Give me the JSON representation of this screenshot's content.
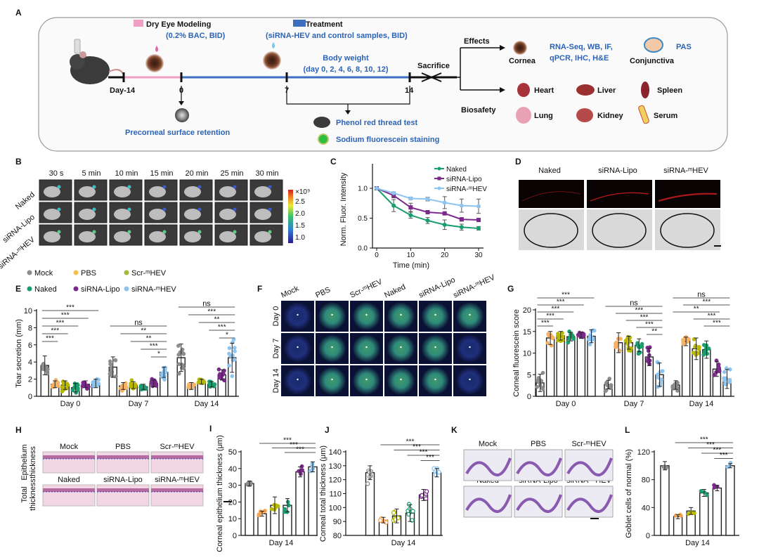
{
  "panel_a": {
    "label": "A",
    "dry_eye_title": "Dry Eye Modeling",
    "dry_eye_sub": "(0.2% BAC, BID)",
    "treatment_title": "Treatment",
    "treatment_sub": "(siRNA-HEV and control samples, BID)",
    "body_weight": "Body weight",
    "body_weight_days": "(day 0, 2, 4, 6, 8, 10, 12)",
    "timepoints": [
      "Day-14",
      "0",
      "7",
      "14"
    ],
    "sacrifice": "Sacrifice",
    "precorneal": "Precorneal surface retention",
    "phenol": "Phenol red thread test",
    "fluorescein": "Sodium fluorescein staining",
    "effects": "Effects",
    "biosafety": "Biosafety",
    "cornea": "Cornea",
    "assays_line1": "RNA-Seq, WB, IF,",
    "assays_line2": "qPCR, IHC, H&E",
    "pas": "PAS",
    "conjunctiva": "Conjunctiva",
    "organs": [
      "Heart",
      "Liver",
      "Spleen",
      "Lung",
      "Kidney",
      "Serum"
    ],
    "colors": {
      "modeling": "#f19ec4",
      "treatment": "#3d6fc0",
      "text_blue": "#2b63b8"
    }
  },
  "panel_b": {
    "label": "B",
    "times": [
      "30 s",
      "5 min",
      "10 min",
      "15 min",
      "20 min",
      "25 min",
      "30 min"
    ],
    "rows": [
      "Naked",
      "siRNA-Lipo",
      "siRNA-ᵐHEV"
    ],
    "colorbar_unit": "×10⁹",
    "colorbar_ticks": [
      "2.5",
      "2.0",
      "1.5",
      "1.0"
    ]
  },
  "panel_d": {
    "label": "D",
    "columns": [
      "Naked",
      "siRNA-Lipo",
      "siRNA-ᵐHEV"
    ]
  },
  "panel_f": {
    "label": "F",
    "columns": [
      "Mock",
      "PBS",
      "Scr-ᵐHEV",
      "Naked",
      "siRNA-Lipo",
      "siRNA-ᵐHEV"
    ],
    "rows": [
      "Day 0",
      "Day 7",
      "Day 14"
    ]
  },
  "panel_h": {
    "label": "H",
    "row1": [
      "Mock",
      "PBS",
      "Scr-ᵐHEV"
    ],
    "row2": [
      "Naked",
      "siRNA-Lipo",
      "siRNA-ᵐHEV"
    ],
    "row_labels": [
      [
        "Epithelium",
        "thickness"
      ],
      [
        "Total",
        "thickness"
      ]
    ]
  },
  "panel_k": {
    "label": "K",
    "row1": [
      "Mock",
      "PBS",
      "Scr-ᵐHEV"
    ],
    "row2": [
      "Naked",
      "siRNA-Lipo",
      "siRNA-ᵐHEV"
    ]
  },
  "legend_e": {
    "items": [
      "Mock",
      "PBS",
      "Scr-ᵐHEV",
      "Naked",
      "siRNA-Lipo",
      "siRNA-ᵐHEV"
    ],
    "colors": [
      "#8c8c8c",
      "#f2c14e",
      "#a8b83a",
      "#1a9e6e",
      "#7b2a8c",
      "#8ec5f0"
    ]
  },
  "chart_data": [
    {
      "id": "C",
      "label": "C",
      "type": "line",
      "xlabel": "Time (min)",
      "ylabel": "Norm. Fluor. Intensity",
      "x": [
        0,
        5,
        10,
        15,
        20,
        25,
        30
      ],
      "xticks": [
        0,
        10,
        20,
        30
      ],
      "yticks": [
        "0.0",
        "0.5",
        "1.0"
      ],
      "xlim": [
        0,
        30
      ],
      "ylim": [
        0,
        1.0
      ],
      "series": [
        {
          "name": "Naked",
          "color": "#1a9e6e",
          "values": [
            1.0,
            0.71,
            0.55,
            0.46,
            0.39,
            0.35,
            0.33
          ],
          "err": [
            0,
            0.1,
            0.05,
            0.05,
            0.08,
            0.05,
            0.03
          ]
        },
        {
          "name": "siRNA-Lipo",
          "color": "#7b2a8c",
          "values": [
            1.0,
            0.88,
            0.68,
            0.6,
            0.58,
            0.48,
            0.47
          ],
          "err": [
            0,
            0.04,
            0.07,
            0.03,
            0.02,
            0.03,
            0.02
          ]
        },
        {
          "name": "siRNA-ᵐHEV",
          "color": "#8ec5f0",
          "values": [
            1.0,
            0.92,
            0.83,
            0.82,
            0.76,
            0.71,
            0.7
          ],
          "err": [
            0,
            0.02,
            0.02,
            0.03,
            0.1,
            0.11,
            0.12
          ]
        }
      ],
      "legend": "top-right"
    },
    {
      "id": "E",
      "label": "E",
      "type": "bar",
      "ylabel": "Tear secretion (mm)",
      "ylim": [
        0,
        10
      ],
      "yticks": [
        0,
        2,
        4,
        6,
        8,
        10
      ],
      "categories": [
        "Day 0",
        "Day 7",
        "Day 14"
      ],
      "series_names": [
        "Mock",
        "PBS",
        "Scr-ᵐHEV",
        "Naked",
        "siRNA-Lipo",
        "siRNA-ᵐHEV"
      ],
      "colors": [
        "#8c8c8c",
        "#f7b267",
        "#b8b800",
        "#1a9e6e",
        "#7b2a8c",
        "#8ec5f0"
      ],
      "values": [
        [
          3.6,
          1.4,
          1.3,
          1.0,
          1.4,
          1.5
        ],
        [
          3.4,
          1.2,
          1.3,
          1.1,
          1.5,
          2.8
        ],
        [
          4.5,
          1.2,
          1.7,
          1.4,
          2.5,
          4.5
        ]
      ],
      "sd": [
        [
          1.1,
          0.4,
          0.5,
          0.5,
          0.4,
          0.5
        ],
        [
          1.2,
          0.4,
          0.4,
          0.3,
          0.4,
          0.6
        ],
        [
          1.6,
          0.4,
          0.3,
          0.3,
          0.6,
          1.7
        ]
      ],
      "n": 12,
      "marker": "filled",
      "brackets": [
        [
          [
            0,
            5,
            "***"
          ],
          [
            0,
            4,
            "***"
          ],
          [
            0,
            3,
            "***"
          ],
          [
            0,
            2,
            "***"
          ],
          [
            0,
            1,
            "***"
          ]
        ],
        [
          [
            0,
            5,
            "ns"
          ],
          [
            1,
            5,
            "**"
          ],
          [
            2,
            5,
            "**"
          ],
          [
            3,
            5,
            "***"
          ],
          [
            4,
            5,
            "*"
          ]
        ],
        [
          [
            0,
            5,
            "ns"
          ],
          [
            1,
            5,
            "***"
          ],
          [
            2,
            5,
            "**"
          ],
          [
            3,
            5,
            "***"
          ],
          [
            4,
            5,
            "*"
          ]
        ]
      ]
    },
    {
      "id": "G",
      "label": "G",
      "type": "bar",
      "ylabel": "Corneal fluorescein score",
      "ylim": [
        0,
        20
      ],
      "yticks": [
        0,
        5,
        10,
        15,
        20
      ],
      "categories": [
        "Day 0",
        "Day 7",
        "Day 14"
      ],
      "series_names": [
        "Mock",
        "PBS",
        "Scr-ᵐHEV",
        "Naked",
        "siRNA-Lipo",
        "siRNA-ᵐHEV"
      ],
      "colors": [
        "#8c8c8c",
        "#f7b267",
        "#b8b800",
        "#1a9e6e",
        "#7b2a8c",
        "#8ec5f0"
      ],
      "values": [
        [
          3.1,
          13.5,
          14.0,
          13.8,
          14.1,
          13.9
        ],
        [
          2.7,
          12.4,
          12.4,
          11.8,
          9.1,
          5.0
        ],
        [
          2.6,
          12.7,
          11.0,
          10.8,
          6.3,
          4.0
        ]
      ],
      "sd": [
        [
          2.0,
          1.5,
          1.0,
          1.0,
          0.7,
          1.5
        ],
        [
          1.0,
          2.3,
          1.5,
          1.5,
          2.0,
          2.7
        ],
        [
          1.0,
          1.0,
          2.5,
          2.0,
          1.7,
          2.2
        ]
      ],
      "n": 10,
      "marker": "filled",
      "brackets": [
        [
          [
            0,
            5,
            "***"
          ],
          [
            0,
            4,
            "***"
          ],
          [
            0,
            3,
            "***"
          ],
          [
            0,
            2,
            "***"
          ],
          [
            0,
            1,
            "***"
          ]
        ],
        [
          [
            0,
            5,
            "ns"
          ],
          [
            1,
            5,
            "***"
          ],
          [
            2,
            5,
            "***"
          ],
          [
            3,
            5,
            "***"
          ],
          [
            4,
            5,
            "**"
          ]
        ],
        [
          [
            0,
            5,
            "ns"
          ],
          [
            1,
            5,
            "***"
          ],
          [
            0,
            4,
            "**"
          ],
          [
            2,
            5,
            "***"
          ],
          [
            3,
            5,
            "***"
          ]
        ]
      ]
    },
    {
      "id": "I",
      "label": "I",
      "type": "bar",
      "ylabel": "Corneal epithelium thickness (μm)",
      "ylim": [
        0,
        50
      ],
      "yticks": [
        0,
        10,
        20,
        30,
        40,
        50
      ],
      "categories": [
        "Day 14"
      ],
      "series_names": [
        "Mock",
        "PBS",
        "Scr-ᵐHEV",
        "Naked",
        "siRNA-Lipo",
        "siRNA-ᵐHEV"
      ],
      "colors": [
        "#8c8c8c",
        "#f7a24f",
        "#b8b800",
        "#1a9e6e",
        "#7b2a8c",
        "#8ec5f0"
      ],
      "values": [
        [
          31,
          13,
          18,
          18,
          38,
          41
        ]
      ],
      "sd": [
        [
          1.5,
          1.5,
          5,
          4,
          3,
          3
        ]
      ],
      "n": 6,
      "marker": "filled",
      "brackets": [
        [
          [
            1,
            5,
            "***"
          ],
          [
            2,
            5,
            "***"
          ],
          [
            3,
            5,
            "***"
          ]
        ]
      ]
    },
    {
      "id": "J",
      "label": "J",
      "type": "bar",
      "ylabel": "Corneal total thickness (μm)",
      "ylim": [
        80,
        140
      ],
      "yticks": [
        80,
        90,
        100,
        110,
        120,
        130,
        140
      ],
      "categories": [
        "Day 14"
      ],
      "series_names": [
        "Mock",
        "PBS",
        "Scr-ᵐHEV",
        "Naked",
        "siRNA-Lipo",
        "siRNA-ᵐHEV"
      ],
      "colors": [
        "#8c8c8c",
        "#f7a24f",
        "#b8b800",
        "#1a9e6e",
        "#7b2a8c",
        "#8ec5f0"
      ],
      "values": [
        [
          125,
          91,
          94,
          96,
          109,
          125
        ]
      ],
      "sd": [
        [
          5,
          2,
          5,
          6,
          4,
          3
        ]
      ],
      "n": 6,
      "marker": "open",
      "brackets": [
        [
          [
            1,
            5,
            "***"
          ],
          [
            2,
            5,
            "***"
          ],
          [
            3,
            5,
            "***"
          ],
          [
            4,
            5,
            "***"
          ]
        ]
      ]
    },
    {
      "id": "L",
      "label": "L",
      "type": "bar",
      "ylabel": "Goblet cells of normal (%)",
      "ylim": [
        0,
        120
      ],
      "yticks": [
        0,
        40,
        80,
        120
      ],
      "categories": [
        "Day 14"
      ],
      "series_names": [
        "Mock",
        "PBS",
        "Scr-ᵐHEV",
        "Naked",
        "siRNA-Lipo",
        "siRNA-ᵐHEV"
      ],
      "colors": [
        "#8c8c8c",
        "#f7a24f",
        "#b8b800",
        "#1a9e6e",
        "#7b2a8c",
        "#8ec5f0"
      ],
      "values": [
        [
          100,
          27,
          35,
          61,
          68,
          100
        ]
      ],
      "sd": [
        [
          6,
          3,
          5,
          5,
          4,
          3
        ]
      ],
      "n": 3,
      "marker": "filled",
      "brackets": [
        [
          [
            1,
            5,
            "***"
          ],
          [
            2,
            5,
            "***"
          ],
          [
            3,
            5,
            "***"
          ],
          [
            4,
            5,
            "***"
          ]
        ]
      ]
    }
  ]
}
